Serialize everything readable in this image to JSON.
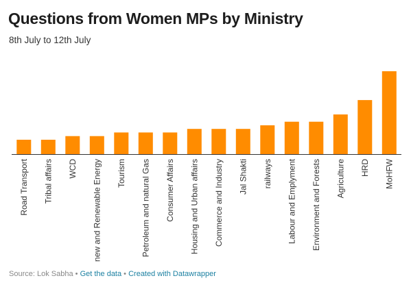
{
  "header": {
    "title": "Questions from Women MPs by Ministry",
    "subtitle": "8th July to 12th July"
  },
  "chart_data": {
    "type": "bar",
    "title": "Questions from Women MPs by Ministry",
    "subtitle": "8th July to 12th July",
    "xlabel": "",
    "ylabel": "",
    "categories": [
      "Road Transport",
      "Tribal affairs",
      "WCD",
      "new and Renewable Energy",
      "Tourism",
      "Petroleum and natural Gas",
      "Consumer Affairs",
      "Housing and Urban affairs",
      "Commerce and Industry",
      "Jal Shakti",
      "railways",
      "Labour and Emplyment",
      "Environment and Forests",
      "Agriculture",
      "HRD",
      "MoHFW"
    ],
    "values": [
      4,
      4,
      5,
      5,
      6,
      6,
      6,
      7,
      7,
      7,
      8,
      9,
      9,
      11,
      15,
      23
    ],
    "ylim": [
      0,
      23
    ],
    "grid": false,
    "bar_color": "#ff8c00",
    "axis_color": "#333333"
  },
  "footer": {
    "source": "Source: Lok Sabha",
    "separator": "•",
    "get_data": "Get the data",
    "created_with": "Created with Datawrapper",
    "link_color": "#1d81a2"
  }
}
